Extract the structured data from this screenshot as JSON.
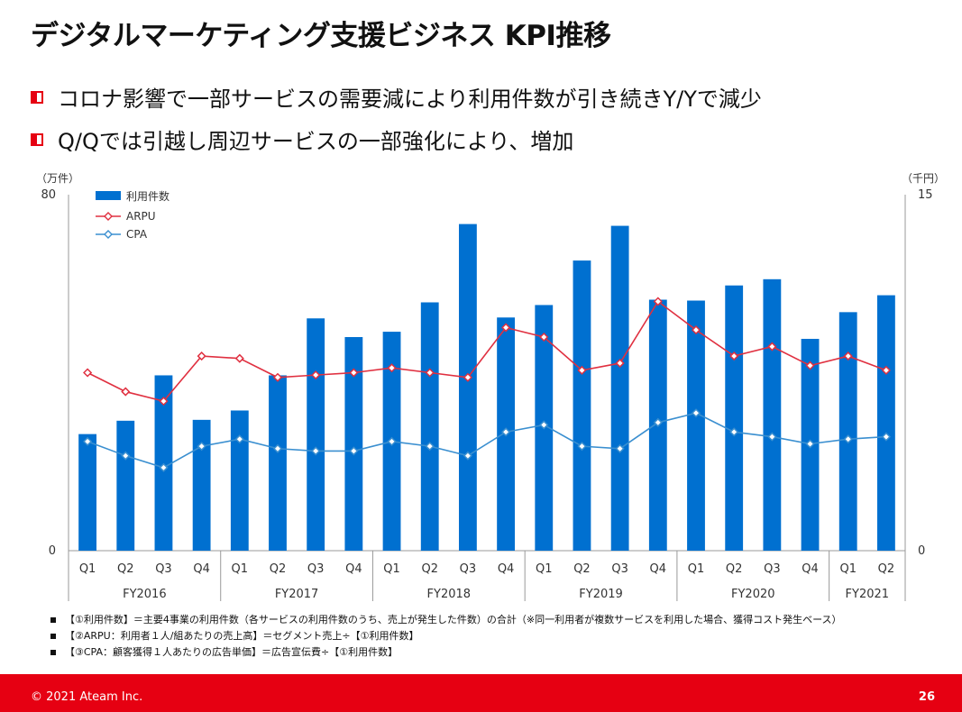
{
  "slide": {
    "title": "デジタルマーケティング支援ビジネス KPI推移",
    "bullets": [
      "コロナ影響で一部サービスの需要減により利用件数が引き続きY/Yで減少",
      "Q/Qでは引越し周辺サービスの一部強化により、増加"
    ],
    "notes": [
      "【①利用件数】＝主要4事業の利用件数（各サービスの利用件数のうち、売上が発生した件数）の合計（※同一利用者が複数サービスを利用した場合、獲得コスト発生ベース）",
      "【②ARPU：利用者１人/組あたりの売上高】＝セグメント売上÷【①利用件数】",
      "【③CPA：顧客獲得１人あたりの広告単価】＝広告宣伝費÷【①利用件数】"
    ],
    "footer": {
      "copyright": "© 2021 Ateam Inc.",
      "page": "26"
    },
    "colors": {
      "accent": "#e60012",
      "bar": "#0070d0",
      "arpu": "#e03040",
      "cpa": "#3a8fd0"
    }
  },
  "chart_data": {
    "type": "bar",
    "left_axis_unit": "（万件）",
    "right_axis_unit": "（千円）",
    "ylim_left": [
      0,
      80
    ],
    "ylim_right": [
      0,
      15
    ],
    "left_ticks": [
      "80",
      "0"
    ],
    "right_ticks": [
      "15",
      "0"
    ],
    "categories": [
      "Q1",
      "Q2",
      "Q3",
      "Q4",
      "Q1",
      "Q2",
      "Q3",
      "Q4",
      "Q1",
      "Q2",
      "Q3",
      "Q4",
      "Q1",
      "Q2",
      "Q3",
      "Q4",
      "Q1",
      "Q2",
      "Q3",
      "Q4",
      "Q1",
      "Q2"
    ],
    "fiscal_years": [
      {
        "label": "FY2016",
        "count": 4
      },
      {
        "label": "FY2017",
        "count": 4
      },
      {
        "label": "FY2018",
        "count": 4
      },
      {
        "label": "FY2019",
        "count": 4
      },
      {
        "label": "FY2020",
        "count": 4
      },
      {
        "label": "FY2021",
        "count": 2
      }
    ],
    "legend_position": "top-left",
    "series": [
      {
        "name": "利用件数",
        "type": "bar",
        "axis": "left",
        "values": [
          26.2,
          29.2,
          39.4,
          29.4,
          31.5,
          39.4,
          52.2,
          48.0,
          49.2,
          55.8,
          73.4,
          52.4,
          55.2,
          65.2,
          73.0,
          56.4,
          56.2,
          59.6,
          61.0,
          47.6,
          53.6,
          57.4
        ]
      },
      {
        "name": "ARPU",
        "type": "line",
        "axis": "right",
        "values": [
          7.5,
          6.7,
          6.3,
          8.2,
          8.1,
          7.3,
          7.4,
          7.5,
          7.7,
          7.5,
          7.3,
          9.4,
          9.0,
          7.6,
          7.9,
          10.5,
          9.3,
          8.2,
          8.6,
          7.8,
          8.2,
          7.6
        ]
      },
      {
        "name": "CPA",
        "type": "line",
        "axis": "right",
        "values": [
          4.6,
          4.0,
          3.5,
          4.4,
          4.7,
          4.3,
          4.2,
          4.2,
          4.6,
          4.4,
          4.0,
          5.0,
          5.3,
          4.4,
          4.3,
          5.4,
          5.8,
          5.0,
          4.8,
          4.5,
          4.7,
          4.8
        ]
      }
    ]
  }
}
